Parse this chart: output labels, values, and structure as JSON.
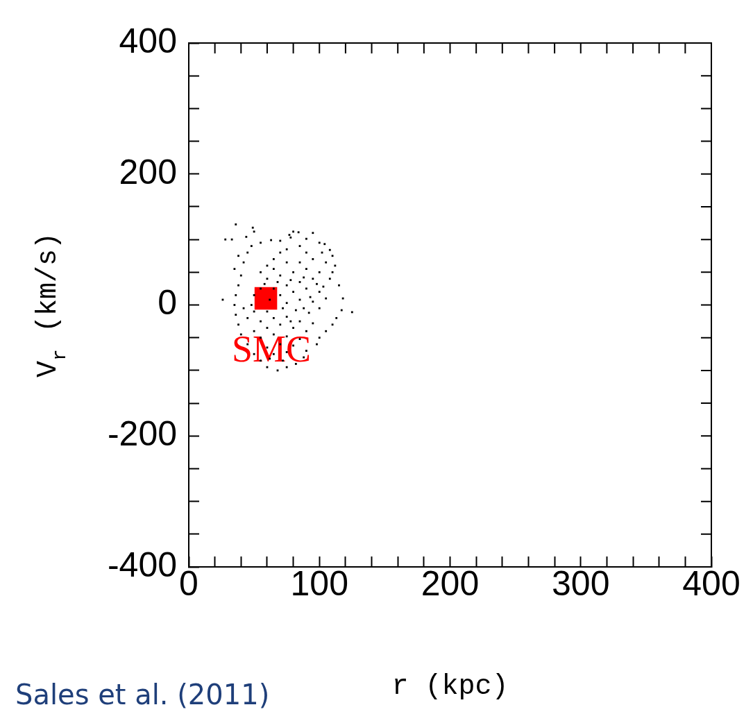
{
  "chart_data": {
    "type": "scatter",
    "xlabel": "r (kpc)",
    "ylabel": "V$_{r}$ (km/s)",
    "xlim": [
      0,
      400
    ],
    "ylim": [
      -400,
      400
    ],
    "xticks": [
      0,
      {
        "value": 20,
        "label": null
      },
      {
        "value": 40,
        "label": null
      },
      {
        "value": 60,
        "label": null
      },
      {
        "value": 80,
        "label": null
      },
      100,
      {
        "value": 120,
        "label": null
      },
      {
        "value": 140,
        "label": null
      },
      {
        "value": 160,
        "label": null
      },
      {
        "value": 180,
        "label": null
      },
      200,
      {
        "value": 220,
        "label": null
      },
      {
        "value": 240,
        "label": null
      },
      {
        "value": 260,
        "label": null
      },
      {
        "value": 280,
        "label": null
      },
      300,
      {
        "value": 320,
        "label": null
      },
      {
        "value": 340,
        "label": null
      },
      {
        "value": 360,
        "label": null
      },
      {
        "value": 380,
        "label": null
      },
      400
    ],
    "yticks": [
      -400,
      {
        "value": -350,
        "label": null
      },
      {
        "value": -300,
        "label": null
      },
      {
        "value": -250,
        "label": null
      },
      -200,
      {
        "value": -150,
        "label": null
      },
      {
        "value": -100,
        "label": null
      },
      {
        "value": -50,
        "label": null
      },
      0,
      {
        "value": 50,
        "label": null
      },
      {
        "value": 100,
        "label": null
      },
      {
        "value": 150,
        "label": null
      },
      200,
      {
        "value": 250,
        "label": null
      },
      {
        "value": 300,
        "label": null
      },
      {
        "value": 350,
        "label": null
      },
      400
    ],
    "grid": false,
    "legend": false,
    "marker": "square",
    "series": [
      {
        "color": "#000000",
        "x": [
          36,
          49,
          50,
          44,
          33,
          63,
          77,
          80,
          84,
          95,
          78,
          70,
          90,
          100,
          104,
          102,
          108,
          110,
          105,
          112,
          110,
          108,
          115,
          118,
          125,
          117,
          113,
          110,
          105,
          100,
          98,
          90,
          88,
          82,
          75,
          68,
          60,
          55,
          50,
          45,
          40,
          38,
          36,
          35,
          26,
          36,
          38,
          40,
          35,
          42,
          38,
          45,
          48,
          55,
          28,
          55,
          60,
          65,
          70,
          75,
          85,
          90,
          95,
          85,
          75,
          65,
          60,
          70,
          80,
          90,
          100,
          95,
          85,
          75,
          65,
          55,
          50,
          70,
          80,
          90,
          100,
          105,
          95,
          85,
          75,
          72,
          82,
          92,
          100,
          60,
          50,
          45,
          55,
          65,
          75,
          85,
          95,
          90,
          80,
          70,
          60,
          50,
          55,
          65,
          75,
          85,
          80,
          70,
          60,
          65,
          75,
          72,
          62,
          78,
          88,
          68,
          58,
          48,
          42,
          98,
          103,
          62,
          78,
          88,
          93
        ],
        "values": [
          123,
          118,
          112,
          104,
          100,
          99,
          107,
          112,
          111,
          110,
          103,
          98,
          101,
          95,
          93,
          80,
          84,
          75,
          65,
          60,
          50,
          40,
          30,
          10,
          -11,
          -8,
          -20,
          -30,
          -40,
          -50,
          -60,
          -70,
          -80,
          -90,
          -95,
          -100,
          -95,
          -85,
          -75,
          -60,
          -45,
          -30,
          -15,
          0,
          8,
          15,
          30,
          45,
          55,
          65,
          75,
          80,
          90,
          95,
          100,
          50,
          60,
          70,
          80,
          85,
          90,
          80,
          70,
          65,
          65,
          55,
          40,
          45,
          50,
          55,
          50,
          40,
          35,
          30,
          25,
          25,
          15,
          15,
          20,
          25,
          20,
          10,
          5,
          8,
          3,
          -5,
          -8,
          -12,
          -5,
          -10,
          -10,
          -20,
          -25,
          -20,
          -18,
          -25,
          -28,
          -40,
          -35,
          -30,
          -35,
          -40,
          -50,
          -45,
          -48,
          -52,
          -62,
          -60,
          -65,
          -75,
          -72,
          -85,
          -82,
          38,
          42,
          35,
          32,
          0,
          -5,
          32,
          28,
          8,
          -25,
          -5,
          12
        ]
      },
      {
        "name": "SMC",
        "color": "#ff0000",
        "x": [
          59
        ],
        "values": [
          10
        ]
      }
    ],
    "annotations": [
      "Sales et al. (2011)"
    ]
  }
}
